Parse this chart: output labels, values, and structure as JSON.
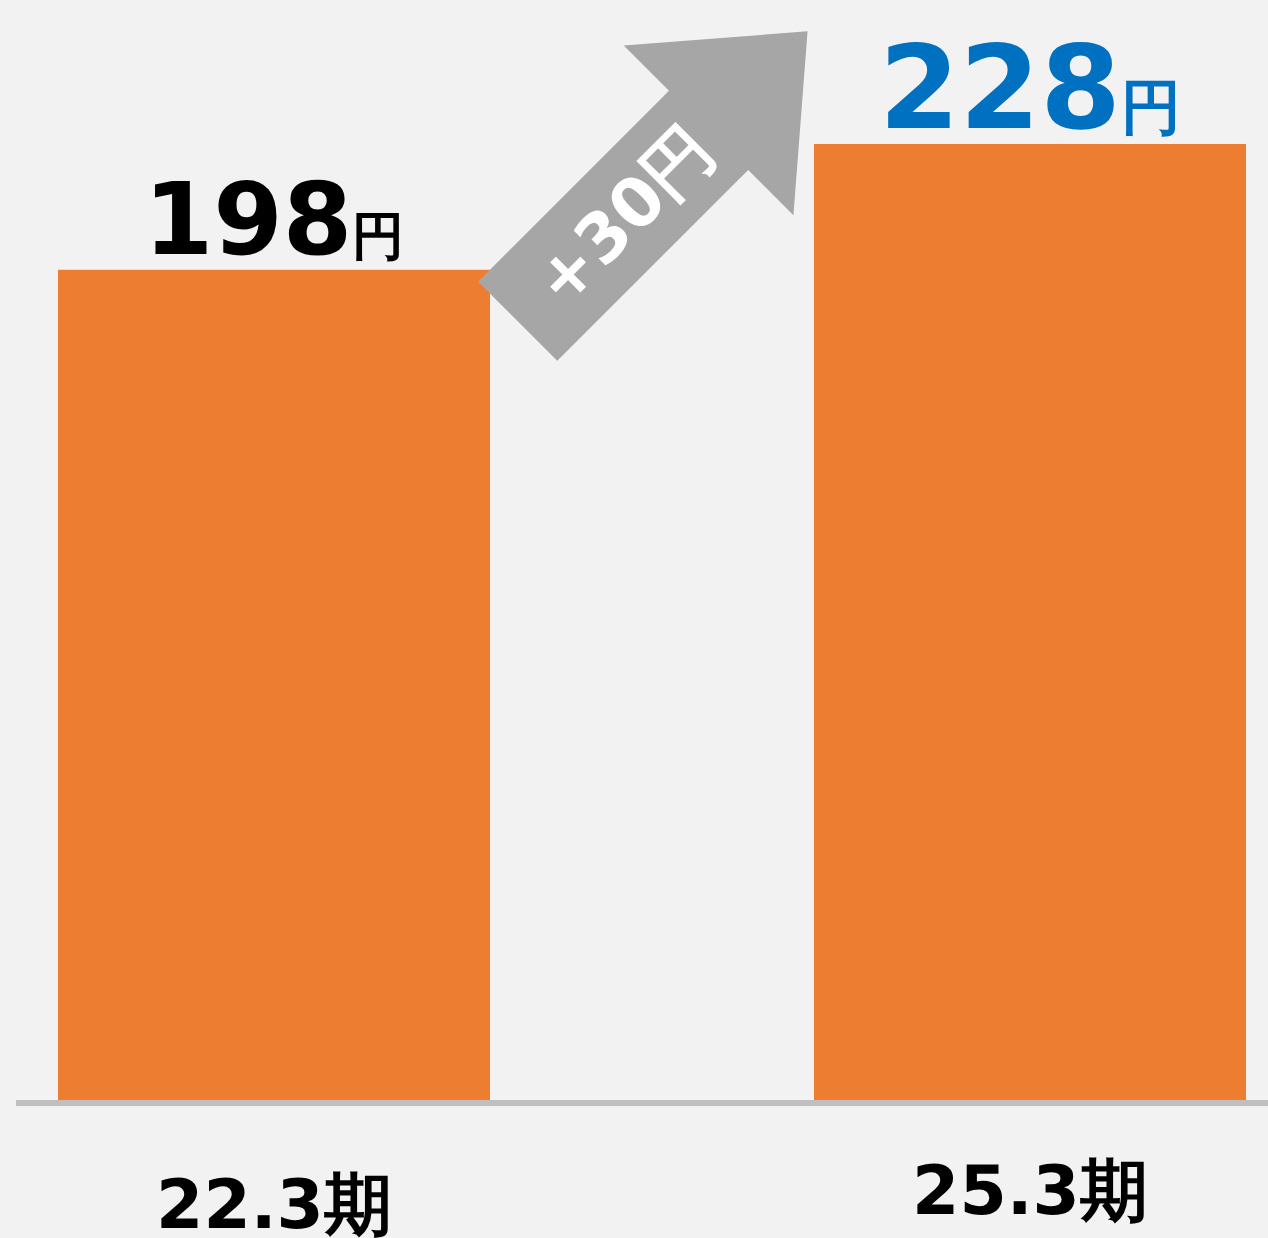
{
  "chart_data": {
    "type": "bar",
    "categories": [
      "22.3期",
      "25.3期"
    ],
    "values": [
      198,
      228
    ],
    "color": "#ed7d31",
    "value_labels": [
      "198円",
      "228円"
    ],
    "tick_labels": "x",
    "annotations": [
      "+30円"
    ]
  }
}
